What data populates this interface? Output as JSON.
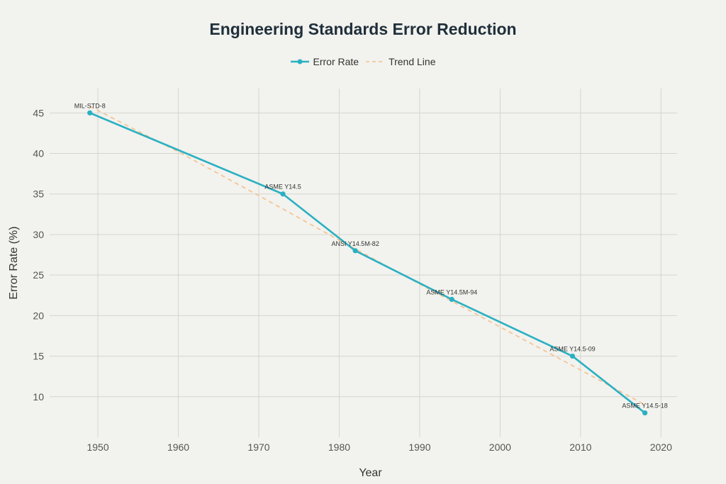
{
  "chart_data": {
    "type": "line",
    "title": "Engineering Standards Error Reduction",
    "xlabel": "Year",
    "ylabel": "Error Rate (%)",
    "xlim": [
      1944,
      2022
    ],
    "ylim": [
      5,
      48
    ],
    "x_ticks": [
      1950,
      1960,
      1970,
      1980,
      1990,
      2000,
      2010,
      2020
    ],
    "y_ticks": [
      10,
      15,
      20,
      25,
      30,
      35,
      40,
      45
    ],
    "grid": true,
    "legend_position": "top-center",
    "series": [
      {
        "name": "Error Rate",
        "color": "#2ab0c2",
        "style": "solid-with-markers",
        "x": [
          1949,
          1973,
          1982,
          1994,
          2009,
          2018
        ],
        "y": [
          45,
          35,
          28,
          22,
          15,
          8
        ],
        "point_labels": [
          "MIL-STD-8",
          "ASME Y14.5",
          "ANSI Y14.5M-82",
          "ASME Y14.5M-94",
          "ASME Y14.5-09",
          "ASME Y14.5-18"
        ]
      },
      {
        "name": "Trend Line",
        "color": "#f5c08a",
        "style": "dashed",
        "x": [
          1949,
          1960,
          1970,
          1980,
          1990,
          2000,
          2010,
          2018
        ],
        "y": [
          45.8,
          40.2,
          34.8,
          29.3,
          23.9,
          18.6,
          13.3,
          9.0
        ]
      }
    ]
  }
}
